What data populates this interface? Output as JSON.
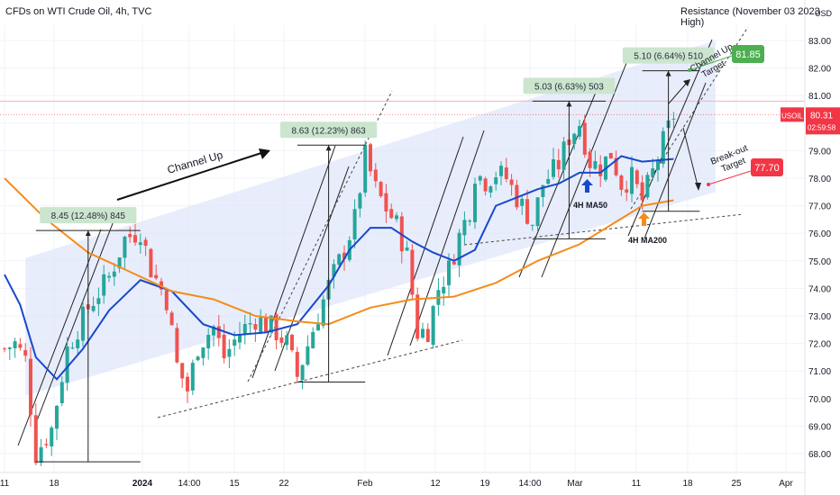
{
  "header": {
    "symbol_title": "CFDs on WTI Crude Oil, 4h, TVC",
    "resistance_label": "Resistance (November 03 2023 High)",
    "currency": "USD"
  },
  "chart_data": {
    "type": "candlestick",
    "title": "CFDs on WTI Crude Oil, 4h, TVC",
    "ylim": [
      67.4,
      83.6
    ],
    "y_ticks": [
      68.0,
      69.0,
      70.0,
      71.0,
      72.0,
      73.0,
      74.0,
      75.0,
      76.0,
      77.0,
      78.0,
      79.0,
      80.0,
      81.0,
      82.0,
      83.0
    ],
    "x_ticks": [
      "11",
      "18",
      "2024",
      "14:00",
      "15",
      "22",
      "Feb",
      "12",
      "19",
      "14:00",
      "Mar",
      "11",
      "18",
      "25",
      "Apr"
    ],
    "price_path": [
      [
        0,
        71.8
      ],
      [
        2,
        72.0
      ],
      [
        4,
        71.4
      ],
      [
        6,
        68.0
      ],
      [
        9,
        68.9
      ],
      [
        12,
        71.8
      ],
      [
        16,
        73.3
      ],
      [
        20,
        74.4
      ],
      [
        23,
        75.8
      ],
      [
        26,
        76.1
      ],
      [
        28,
        74.7
      ],
      [
        31,
        73.6
      ],
      [
        33,
        71.2
      ],
      [
        35,
        70.3
      ],
      [
        37,
        71.9
      ],
      [
        40,
        72.6
      ],
      [
        42,
        71.5
      ],
      [
        45,
        72.4
      ],
      [
        48,
        72.9
      ],
      [
        51,
        72.6
      ],
      [
        54,
        72.0
      ],
      [
        56,
        70.8
      ],
      [
        59,
        72.5
      ],
      [
        62,
        74.1
      ],
      [
        65,
        75.4
      ],
      [
        67,
        76.5
      ],
      [
        69,
        78.8
      ],
      [
        71,
        77.6
      ],
      [
        73,
        76.9
      ],
      [
        75,
        76.3
      ],
      [
        77,
        75.2
      ],
      [
        78,
        73.8
      ],
      [
        79,
        72.4
      ],
      [
        81,
        72.5
      ],
      [
        83,
        74.0
      ],
      [
        85,
        74.7
      ],
      [
        87,
        75.9
      ],
      [
        89,
        76.9
      ],
      [
        90,
        78.2
      ],
      [
        92,
        77.9
      ],
      [
        94,
        78.2
      ],
      [
        96,
        78.0
      ],
      [
        98,
        77.3
      ],
      [
        101,
        76.4
      ],
      [
        103,
        77.8
      ],
      [
        106,
        78.5
      ],
      [
        108,
        79.5
      ],
      [
        110,
        80.0
      ],
      [
        112,
        78.6
      ],
      [
        114,
        78.4
      ],
      [
        116,
        78.9
      ],
      [
        118,
        77.8
      ],
      [
        120,
        78.0
      ],
      [
        122,
        77.2
      ],
      [
        124,
        78.2
      ],
      [
        126,
        79.3
      ],
      [
        128,
        80.3
      ]
    ],
    "series": [
      {
        "name": "4H MA50",
        "color": "#1848cc",
        "points": [
          [
            0,
            74.5
          ],
          [
            3,
            73.4
          ],
          [
            6,
            71.5
          ],
          [
            10,
            70.7
          ],
          [
            15,
            71.8
          ],
          [
            20,
            73.2
          ],
          [
            26,
            74.3
          ],
          [
            32,
            73.9
          ],
          [
            38,
            72.7
          ],
          [
            44,
            72.3
          ],
          [
            50,
            72.4
          ],
          [
            56,
            72.7
          ],
          [
            62,
            74.1
          ],
          [
            66,
            75.4
          ],
          [
            70,
            76.2
          ],
          [
            74,
            76.2
          ],
          [
            78,
            75.7
          ],
          [
            82,
            75.3
          ],
          [
            86,
            75.0
          ],
          [
            90,
            75.4
          ],
          [
            94,
            77.0
          ],
          [
            98,
            77.3
          ],
          [
            102,
            77.6
          ],
          [
            106,
            77.8
          ],
          [
            110,
            78.2
          ],
          [
            114,
            78.2
          ],
          [
            118,
            78.8
          ],
          [
            122,
            78.6
          ],
          [
            128,
            78.7
          ]
        ]
      },
      {
        "name": "4H MA200",
        "color": "#f48c1a",
        "points": [
          [
            0,
            78.0
          ],
          [
            8,
            76.5
          ],
          [
            16,
            75.3
          ],
          [
            24,
            74.6
          ],
          [
            32,
            73.9
          ],
          [
            40,
            73.6
          ],
          [
            48,
            73.0
          ],
          [
            56,
            72.8
          ],
          [
            62,
            72.7
          ],
          [
            70,
            73.3
          ],
          [
            78,
            73.6
          ],
          [
            86,
            73.7
          ],
          [
            94,
            74.2
          ],
          [
            102,
            75.0
          ],
          [
            110,
            75.6
          ],
          [
            116,
            76.3
          ],
          [
            122,
            77.0
          ],
          [
            128,
            77.2
          ]
        ]
      }
    ],
    "channel": {
      "x_range": [
        4,
        136
      ],
      "lower_start": 70.1,
      "lower_end": 77.5,
      "upper_start": 75.1,
      "upper_end": 83.0
    },
    "measurements": [
      {
        "label": "8.45 (12.48%) 845",
        "x1": 6,
        "x2": 26,
        "low": 67.7,
        "high": 76.1,
        "label_x": 16
      },
      {
        "label": "8.63 (12.23%) 863",
        "x1": 56,
        "x2": 69,
        "low": 70.6,
        "high": 79.2,
        "label_x": 62
      },
      {
        "label": "5.03 (6.63%) 503",
        "x1": 101,
        "x2": 115,
        "low": 75.8,
        "high": 80.8,
        "label_x": 108
      },
      {
        "label": "5.10 (6.64%) 510",
        "x1": 122,
        "x2": 133,
        "low": 76.8,
        "high": 81.9,
        "label_x": 127
      }
    ],
    "annotations": {
      "channel_up": "Channel Up",
      "channel_up_target": "Channel Up Target",
      "breakout_target": "Break-out Target",
      "ma50_label": "4H MA50",
      "ma200_label": "4H MA200"
    },
    "price_labels": [
      {
        "text": "81.85",
        "value": 81.85,
        "color": "#4caf50"
      },
      {
        "text": "77.70",
        "value": 77.7,
        "color": "#f23645"
      }
    ],
    "last_price": {
      "symbol": "USOIL",
      "value": "80.31",
      "countdown": "02:59:58",
      "color": "#f23645"
    },
    "resistance_level": 80.8
  }
}
